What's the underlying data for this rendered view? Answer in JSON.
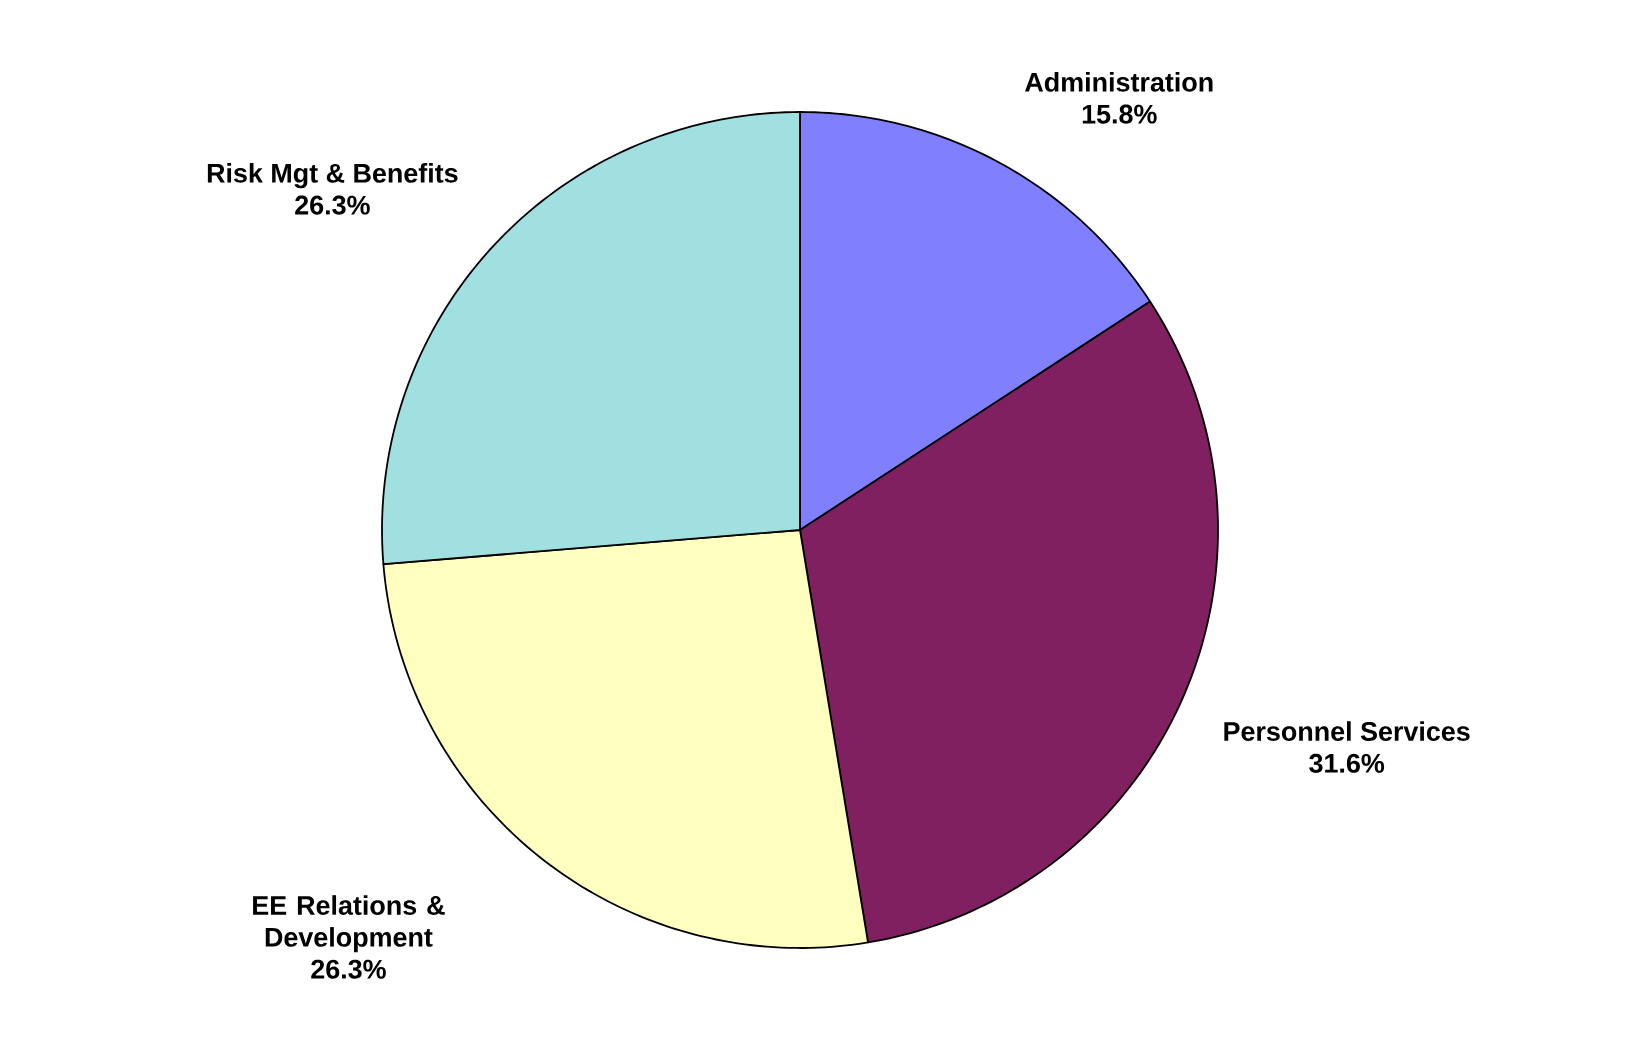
{
  "chart_data": {
    "type": "pie",
    "categories": [
      "Administration",
      "Personnel Services",
      "EE Relations & Development",
      "Risk Mgt & Benefits"
    ],
    "values": [
      15.8,
      31.6,
      26.3,
      26.3
    ],
    "value_labels": [
      "15.8%",
      "31.6%",
      "26.3%",
      "26.3%"
    ],
    "colors": [
      "#8080ff",
      "#802060",
      "#ffffc0",
      "#a0e0e0"
    ]
  }
}
